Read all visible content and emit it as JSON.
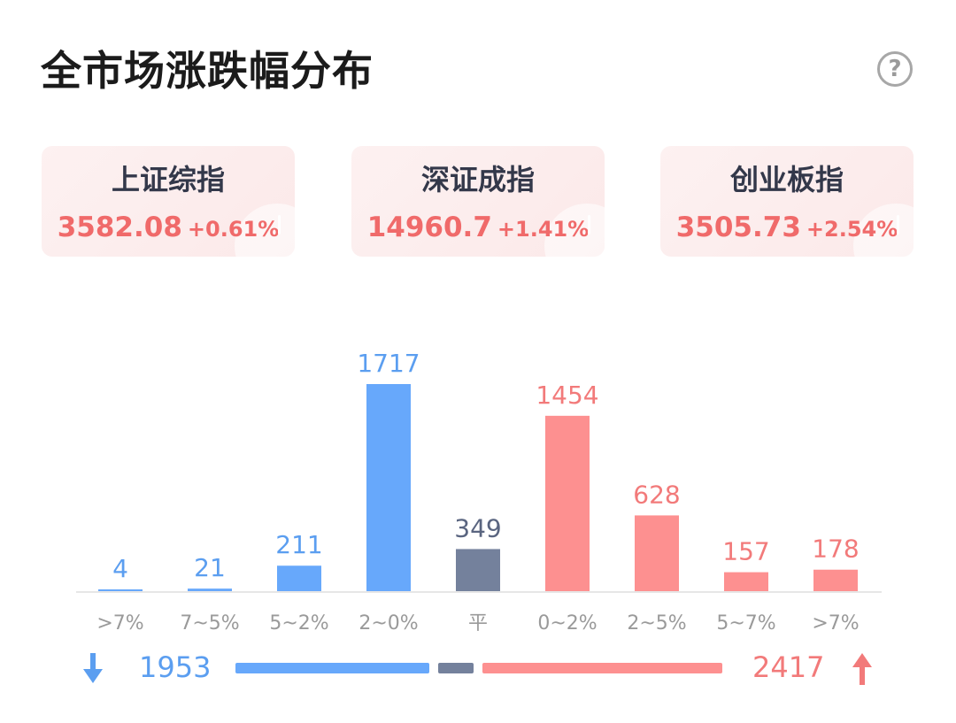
{
  "header": {
    "title": "全市场涨跌幅分布",
    "help_label": "?"
  },
  "indices": [
    {
      "name": "上证综指",
      "price": "3582.08",
      "change": "+0.61%"
    },
    {
      "name": "深证成指",
      "price": "14960.7",
      "change": "+1.41%"
    },
    {
      "name": "创业板指",
      "price": "3505.73",
      "change": "+2.54%"
    }
  ],
  "chart_data": {
    "type": "bar",
    "categories": [
      ">7%",
      "7~5%",
      "5~2%",
      "2~0%",
      "平",
      "0~2%",
      "2~5%",
      "5~7%",
      ">7%"
    ],
    "values": [
      4,
      21,
      211,
      1717,
      349,
      1454,
      628,
      157,
      178
    ],
    "groups": [
      "down",
      "down",
      "down",
      "down",
      "flat",
      "up",
      "up",
      "up",
      "up"
    ],
    "title": "全市场涨跌幅分布"
  },
  "summary": {
    "down_total": "1953",
    "flat_total": 349,
    "up_total": "2417"
  },
  "colors": {
    "down": "#67a8fb",
    "down_text": "#5b9ef0",
    "flat": "#74819c",
    "flat_text": "#5a6580",
    "up": "#fd9090",
    "up_text": "#f27a7a",
    "axis": "#e6e6e6",
    "category_text": "#9a9a9a"
  }
}
